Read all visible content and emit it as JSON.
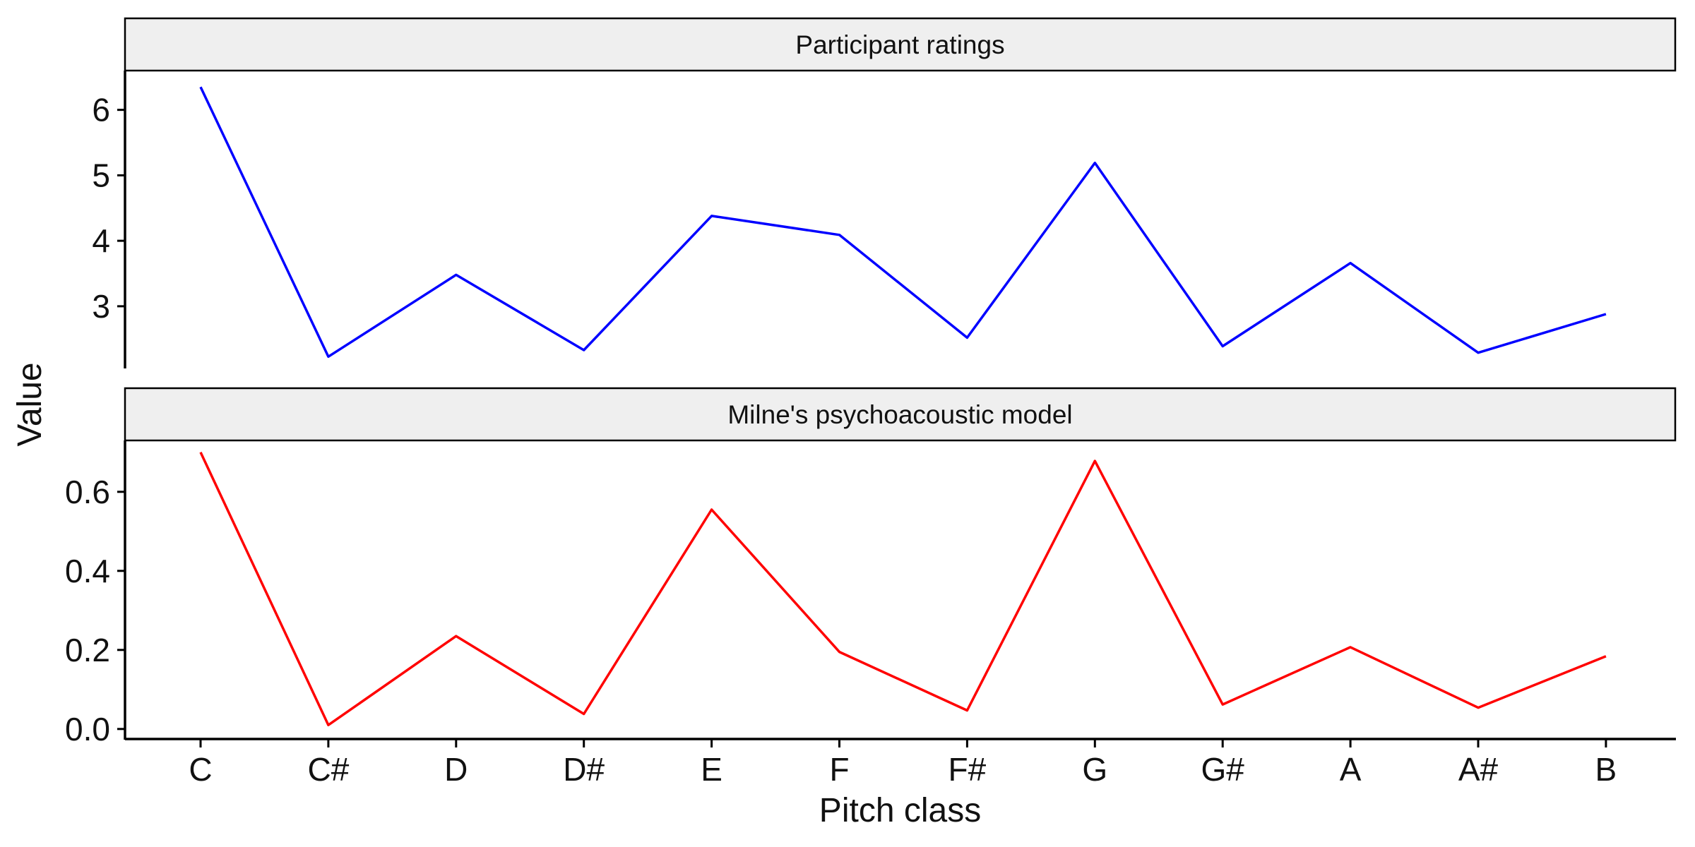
{
  "chart_data": {
    "type": "line",
    "xlabel": "Pitch class",
    "ylabel": "Value",
    "categories": [
      "C",
      "C#",
      "D",
      "D#",
      "E",
      "F",
      "F#",
      "G",
      "G#",
      "A",
      "A#",
      "B"
    ],
    "panels": [
      {
        "title": "Participant ratings",
        "color": "#0000ff",
        "ylim": [
          2.05,
          6.6
        ],
        "yticks": [
          3,
          4,
          5,
          6
        ],
        "values": [
          6.35,
          2.23,
          3.48,
          2.33,
          4.38,
          4.09,
          2.52,
          5.19,
          2.39,
          3.66,
          2.29,
          2.88
        ]
      },
      {
        "title": "Milne's psychoacoustic model",
        "color": "#ff0000",
        "ylim": [
          -0.02,
          0.73
        ],
        "yticks": [
          "0.0",
          "0.2",
          "0.4",
          "0.6"
        ],
        "values": [
          0.7,
          0.01,
          0.235,
          0.038,
          0.555,
          0.195,
          0.047,
          0.678,
          0.062,
          0.207,
          0.054,
          0.184
        ]
      }
    ]
  }
}
